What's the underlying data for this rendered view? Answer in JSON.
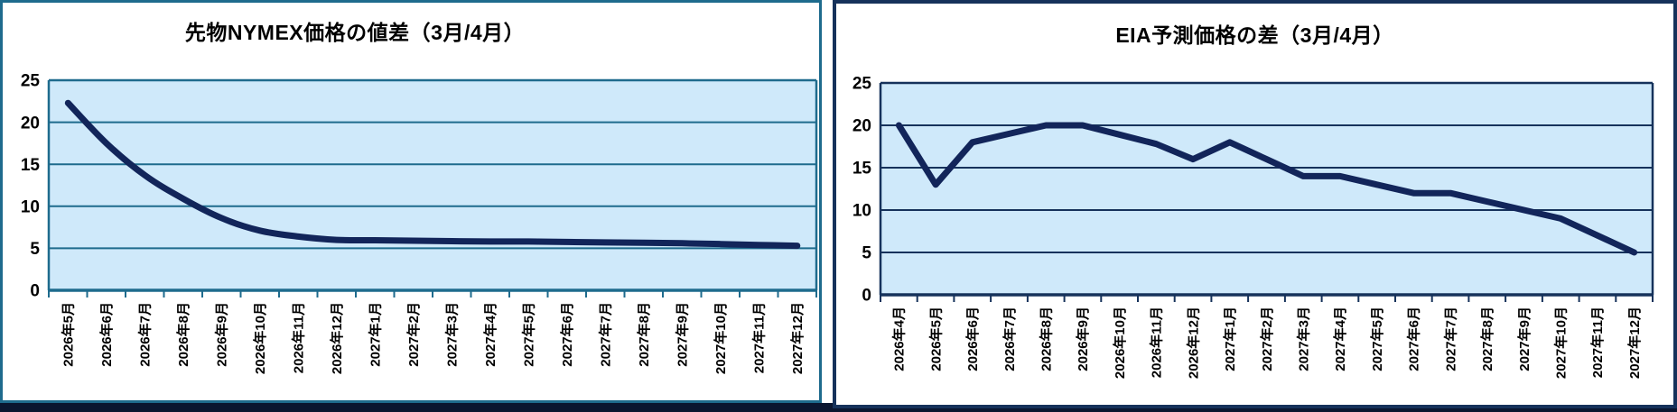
{
  "page": {
    "bottom_strip_color": "#0a1630"
  },
  "chart_data": [
    {
      "type": "line",
      "panel": "left",
      "title": "先物NYMEX価格の値差（3月/4月）",
      "smooth": true,
      "categories": [
        "2026年5月",
        "2026年6月",
        "2026年7月",
        "2026年8月",
        "2026年9月",
        "2026年10月",
        "2026年11月",
        "2026年12月",
        "2027年1月",
        "2027年2月",
        "2027年3月",
        "2027年4月",
        "2027年5月",
        "2027年6月",
        "2027年7月",
        "2027年8月",
        "2027年9月",
        "2027年10月",
        "2027年11月",
        "2027年12月"
      ],
      "values": [
        22.3,
        17.5,
        13.7,
        10.9,
        8.6,
        7.1,
        6.4,
        6.0,
        5.95,
        5.9,
        5.85,
        5.8,
        5.8,
        5.75,
        5.7,
        5.65,
        5.6,
        5.5,
        5.4,
        5.3
      ],
      "xlabel": "",
      "ylabel": "",
      "ylim": [
        0,
        25
      ],
      "yticks": [
        0,
        5,
        10,
        15,
        20,
        25
      ],
      "grid": true,
      "legend": "none",
      "colors": {
        "line": "#12255a",
        "grid": "#1e6b8d",
        "axis": "#1e6b8d",
        "frame": "#1e6b8d",
        "plot_bg": "#cfe9fa",
        "label": "#000000"
      }
    },
    {
      "type": "line",
      "panel": "right",
      "title": "EIA予測価格の差（3月/4月）",
      "smooth": false,
      "categories": [
        "2026年4月",
        "2026年5月",
        "2026年6月",
        "2026年7月",
        "2026年8月",
        "2026年9月",
        "2026年10月",
        "2026年11月",
        "2026年12月",
        "2027年1月",
        "2027年2月",
        "2027年3月",
        "2027年4月",
        "2027年5月",
        "2027年6月",
        "2027年7月",
        "2027年8月",
        "2027年9月",
        "2027年10月",
        "2027年11月",
        "2027年12月"
      ],
      "values": [
        20,
        13,
        18,
        19,
        20,
        20,
        18.9,
        17.8,
        16,
        18,
        16,
        14,
        14,
        13,
        12,
        12,
        11,
        10,
        9,
        7,
        5
      ],
      "xlabel": "",
      "ylabel": "",
      "ylim": [
        0,
        25
      ],
      "yticks": [
        0,
        5,
        10,
        15,
        20,
        25
      ],
      "grid": true,
      "legend": "none",
      "colors": {
        "line": "#12255a",
        "grid": "#16325b",
        "axis": "#16325b",
        "frame": "#16325b",
        "plot_bg": "#cfe9fa",
        "label": "#000000"
      }
    }
  ]
}
